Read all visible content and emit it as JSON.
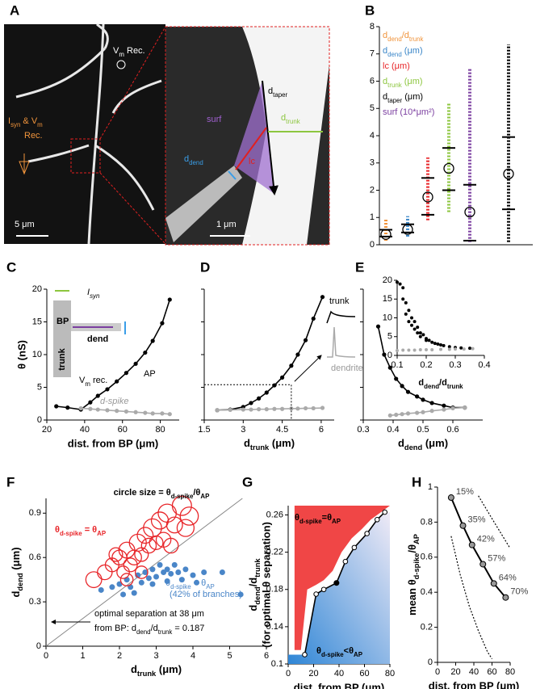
{
  "panel_a": {
    "label": "A",
    "vm_rec": [
      "V",
      "m",
      " Rec."
    ],
    "isyn_rec": [
      "I",
      "syn",
      " & V",
      "m"
    ],
    "rec": "Rec.",
    "scale_left": "5 μm",
    "scale_right": "1 μm",
    "d_taper": [
      "d",
      "taper"
    ],
    "surf": "surf",
    "d_trunk": [
      "d",
      "trunk"
    ],
    "d_dend": [
      "d",
      "dend"
    ],
    "lc": "lc"
  },
  "chart_data": [
    {
      "type": "strip",
      "label": "B",
      "ylim": [
        0,
        8
      ],
      "yticks": [
        0,
        1,
        2,
        3,
        4,
        5,
        6,
        7,
        8
      ],
      "series": [
        {
          "name": [
            "d",
            "dend",
            "/d",
            "trunk"
          ],
          "color": "#f0943c",
          "mean": 0.38,
          "bars": [
            0.3,
            0.55
          ],
          "range": [
            0.15,
            0.95
          ]
        },
        {
          "name": [
            "d",
            "dend",
            " (μm)"
          ],
          "color": "#3a86c8",
          "mean": 0.56,
          "bars": [
            0.45,
            0.75
          ],
          "range": [
            0.3,
            1.05
          ]
        },
        {
          "name": "lc (μm)",
          "color": "#e8262a",
          "mean": 1.75,
          "bars": [
            1.1,
            2.45
          ],
          "range": [
            0.9,
            3.2
          ]
        },
        {
          "name": [
            "d",
            "trunk",
            " (μm)"
          ],
          "color": "#8dc63f",
          "mean": 2.8,
          "bars": [
            2.0,
            3.55
          ],
          "range": [
            1.2,
            5.2
          ]
        },
        {
          "name": "surf (10*μm²)",
          "color": "#7b3fa0",
          "mean": 1.2,
          "bars": [
            0.15,
            2.2
          ],
          "range": [
            0.1,
            6.5
          ]
        },
        {
          "name": [
            "d",
            "taper",
            " (μm)"
          ],
          "color": "#000000",
          "mean": 2.6,
          "bars": [
            1.3,
            3.95
          ],
          "range": [
            0.1,
            7.35
          ]
        }
      ]
    },
    {
      "type": "line",
      "label": "C",
      "xlabel": "dist. from BP (μm)",
      "ylabel": "θ (nS)",
      "xlim": [
        20,
        90
      ],
      "xticks": [
        20,
        40,
        60,
        80
      ],
      "ylim": [
        0,
        20
      ],
      "yticks": [
        0,
        5,
        10,
        15,
        20
      ],
      "x": [
        25,
        31,
        38,
        43,
        47,
        52,
        57,
        62,
        67,
        72,
        76,
        81,
        85
      ],
      "series": [
        {
          "name": "AP",
          "color": "#000000",
          "values": [
            2.1,
            1.9,
            1.6,
            2.7,
            3.7,
            4.7,
            5.9,
            7.2,
            8.6,
            10.3,
            12.1,
            14.8,
            18.4
          ]
        },
        {
          "name": "d-spike",
          "color": "#aaaaaa",
          "values": [
            null,
            null,
            1.8,
            1.7,
            1.6,
            1.5,
            1.4,
            1.3,
            1.2,
            1.1,
            1.0,
            1.0,
            0.9
          ]
        }
      ],
      "annotations": {
        "bp": "BP",
        "dend": "dend",
        "trunk": "trunk",
        "isyn": [
          "I",
          "syn"
        ],
        "vm": [
          "V",
          "m",
          " rec."
        ]
      }
    },
    {
      "type": "line",
      "label": "D",
      "xlabel": [
        "d",
        "trunk",
        " (μm)"
      ],
      "xlim": [
        1.5,
        6.5
      ],
      "xticks": [
        1.5,
        3,
        4.5,
        6
      ],
      "ylim": [
        0,
        20
      ],
      "yticks": [
        0,
        5,
        10,
        15,
        20
      ],
      "show_ytick_labels": false,
      "x": [
        2,
        2.5,
        3,
        3.3,
        3.6,
        3.9,
        4.2,
        4.5,
        4.85,
        5.1,
        5.4,
        5.7,
        6.05
      ],
      "series": [
        {
          "name": "trunk",
          "color": "#000000",
          "values": [
            1.5,
            1.6,
            2.0,
            2.6,
            3.3,
            4.2,
            5.3,
            6.5,
            8.3,
            10.0,
            12.2,
            15.5,
            18.8
          ]
        },
        {
          "name": "dendrite",
          "color": "#aaaaaa",
          "values": [
            1.5,
            1.55,
            1.6,
            1.6,
            1.65,
            1.65,
            1.7,
            1.7,
            1.75,
            1.75,
            1.8,
            1.8,
            1.85
          ]
        }
      ],
      "guide": {
        "x": 4.85,
        "y": 5.4
      }
    },
    {
      "type": "line",
      "label": "E",
      "xlabel": [
        "d",
        "dend",
        " (μm)"
      ],
      "xlim": [
        0.3,
        0.7
      ],
      "xticks": [
        0.3,
        0.4,
        0.5,
        0.6
      ],
      "ylim": [
        0,
        20
      ],
      "yticks": [
        0,
        5,
        10,
        15,
        20
      ],
      "show_ytick_labels": false,
      "x": [
        0.35,
        0.37,
        0.39,
        0.41,
        0.43,
        0.45,
        0.48,
        0.5,
        0.53,
        0.57,
        0.6,
        0.64
      ],
      "series": [
        {
          "color": "#000000",
          "values": [
            14.3,
            10,
            8,
            6.3,
            5.2,
            4.3,
            3.6,
            3.1,
            2.6,
            2.2,
            1.9,
            1.9
          ]
        },
        {
          "color": "#aaaaaa",
          "values": [
            null,
            null,
            0.7,
            0.8,
            0.9,
            1.0,
            1.1,
            1.2,
            1.4,
            1.6,
            1.8,
            1.9
          ]
        }
      ]
    },
    {
      "type": "scatter",
      "xlabel": [
        "d",
        "dend",
        "/d",
        "trunk"
      ],
      "xlim": [
        0.1,
        0.4
      ],
      "xticks": [
        0.1,
        0.2,
        0.3,
        0.4
      ],
      "ylim": [
        0,
        20
      ],
      "yticks": [
        0,
        5,
        10,
        15,
        20
      ],
      "series": [
        {
          "color": "#000000",
          "x": [
            0.1,
            0.11,
            0.12,
            0.12,
            0.13,
            0.13,
            0.14,
            0.14,
            0.15,
            0.15,
            0.16,
            0.16,
            0.17,
            0.17,
            0.18,
            0.18,
            0.19,
            0.2,
            0.2,
            0.21,
            0.22,
            0.23,
            0.24,
            0.25,
            0.26,
            0.28,
            0.3,
            0.32,
            0.35
          ],
          "values": [
            19.5,
            19,
            18,
            15,
            14,
            11,
            12,
            9,
            10,
            8,
            9,
            7,
            7.5,
            6,
            6,
            5,
            5.5,
            4.5,
            4,
            4,
            3.5,
            3.2,
            3,
            2.8,
            2.6,
            2.3,
            2.1,
            2,
            1.9
          ]
        },
        {
          "color": "#aaaaaa",
          "x": [
            0.1,
            0.12,
            0.14,
            0.16,
            0.18,
            0.2,
            0.22,
            0.25,
            0.28,
            0.3,
            0.33,
            0.36
          ],
          "values": [
            1.3,
            1.4,
            1.4,
            1.4,
            1.5,
            1.5,
            1.5,
            1.6,
            1.6,
            1.7,
            1.7,
            1.8
          ]
        }
      ]
    },
    {
      "type": "bubble",
      "label": "F",
      "title": [
        "circle size = θ",
        "d-spike",
        "/θ",
        "AP"
      ],
      "xlabel": [
        "d",
        "trunk",
        " (μm)"
      ],
      "ylabel": [
        "d",
        "dend",
        " (μm)"
      ],
      "xlim": [
        0,
        6
      ],
      "xticks": [
        0,
        1,
        2,
        3,
        4,
        5,
        6
      ],
      "ylim": [
        0,
        1
      ],
      "yticks": [
        0,
        0.3,
        0.6,
        0.9
      ],
      "series": [
        {
          "name": [
            "θ",
            "d-spike",
            " = θ",
            "AP"
          ],
          "color": "#e8262a",
          "x": [
            1.3,
            1.6,
            1.8,
            2.0,
            2.1,
            2.2,
            2.3,
            2.4,
            2.5,
            2.6,
            2.7,
            2.8,
            2.9,
            3.0,
            3.1,
            3.2,
            3.3,
            3.5,
            3.7,
            3.8,
            3.9,
            2.2,
            2.6,
            3.4,
            1.9
          ],
          "values": [
            0.45,
            0.5,
            0.55,
            0.6,
            0.5,
            0.65,
            0.55,
            0.6,
            0.7,
            0.62,
            0.75,
            0.68,
            0.8,
            0.7,
            0.85,
            0.72,
            0.9,
            0.82,
            0.95,
            0.8,
            0.88,
            0.45,
            0.5,
            0.68,
            0.62
          ],
          "sizes": [
            1.4,
            1.3,
            1.2,
            1.3,
            1.1,
            1.4,
            1.2,
            1.3,
            1.5,
            1.2,
            1.4,
            1.3,
            1.6,
            1.2,
            1.5,
            1.3,
            1.6,
            1.4,
            1.7,
            1.5,
            1.6,
            1.1,
            1.1,
            1.3,
            1.2
          ]
        },
        {
          "name": [
            "θ",
            "d-spike",
            " < θ",
            "AP"
          ],
          "note": "(42% of branches)",
          "color": "#4a86c8",
          "x": [
            1.5,
            1.8,
            2.0,
            2.2,
            2.3,
            2.5,
            2.6,
            2.7,
            2.8,
            2.9,
            3.0,
            3.1,
            3.2,
            3.3,
            3.4,
            3.5,
            3.6,
            3.8,
            4.0,
            4.3,
            4.8,
            5.3,
            2.4,
            2.9,
            3.3,
            3.7,
            4.1,
            2.1
          ],
          "values": [
            0.38,
            0.4,
            0.42,
            0.45,
            0.4,
            0.48,
            0.43,
            0.5,
            0.46,
            0.52,
            0.47,
            0.55,
            0.5,
            0.52,
            0.49,
            0.55,
            0.5,
            0.52,
            0.48,
            0.5,
            0.5,
            0.35,
            0.36,
            0.42,
            0.44,
            0.45,
            0.43,
            0.35
          ]
        }
      ],
      "optimal_ratio": 0.187,
      "annotation": [
        "optimal separation at 38 μm",
        [
          "from BP: d",
          "dend",
          "/d",
          "trunk",
          " = 0.187"
        ]
      ]
    },
    {
      "type": "area",
      "label": "G",
      "xlabel": "dist. from BP (μm)",
      "ylabel": [
        "d",
        "dend",
        "/d",
        "trunk"
      ],
      "ylabel2": "(for optimal θ separation)",
      "xlim": [
        0,
        80
      ],
      "xticks": [
        0,
        20,
        40,
        60,
        80
      ],
      "ylim": [
        0.1,
        0.27
      ],
      "yticks": [
        0.1,
        0.14,
        0.18,
        0.22,
        0.26
      ],
      "x": [
        13,
        22,
        28,
        38,
        45,
        52,
        62,
        70,
        76
      ],
      "values": [
        0.11,
        0.175,
        0.18,
        0.187,
        0.21,
        0.225,
        0.24,
        0.255,
        0.263
      ],
      "upper_region": {
        "label": [
          "θ",
          "d-spike",
          "=θ",
          "AP"
        ],
        "color": "#f04646",
        "x": [
          5,
          10,
          15,
          22,
          28,
          35,
          42,
          50,
          58,
          65,
          70,
          75,
          80
        ],
        "values": [
          0.115,
          0.115,
          0.18,
          0.185,
          0.19,
          0.2,
          0.22,
          0.235,
          0.245,
          0.255,
          0.26,
          0.265,
          0.27
        ]
      },
      "lower_label": [
        "θ",
        "d-spike",
        "<θ",
        "AP"
      ]
    },
    {
      "type": "line",
      "label": "H",
      "xlabel": "dist. from BP (μm)",
      "ylabel": [
        "mean θ",
        "d-spike",
        "/θ",
        "AP"
      ],
      "xlim": [
        0,
        80
      ],
      "xticks": [
        0,
        20,
        40,
        60,
        80
      ],
      "ylim": [
        0,
        1
      ],
      "yticks": [
        0,
        0.2,
        0.4,
        0.6,
        0.8,
        1
      ],
      "x": [
        15,
        28,
        38,
        50,
        62,
        75
      ],
      "values": [
        0.94,
        0.78,
        0.67,
        0.56,
        0.45,
        0.37
      ],
      "point_labels": [
        "15%",
        "35%",
        "42%",
        "57%",
        "64%",
        "70%"
      ],
      "bounds": [
        {
          "x": [
            45,
            60,
            80
          ],
          "values": [
            0.95,
            0.82,
            0.65
          ]
        },
        {
          "x": [
            15,
            25,
            35,
            45,
            55,
            60
          ],
          "values": [
            0.72,
            0.5,
            0.32,
            0.18,
            0.06,
            0.02
          ]
        }
      ]
    }
  ]
}
